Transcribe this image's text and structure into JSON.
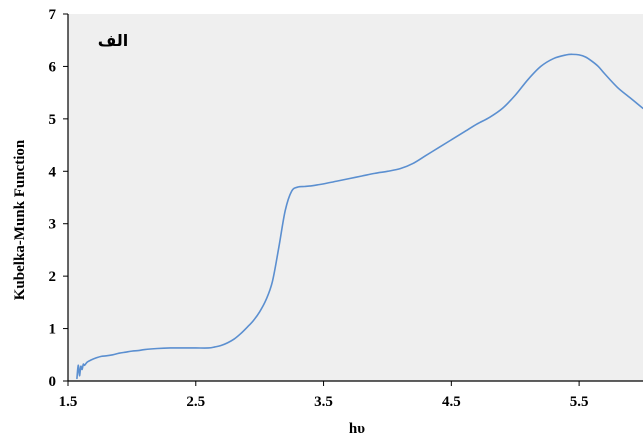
{
  "chart_data": {
    "type": "line",
    "panel_label": "الف",
    "xlabel": "hυ",
    "ylabel": "Kubelka-Munk Function",
    "xlim": [
      1.5,
      6.0
    ],
    "ylim": [
      0,
      7
    ],
    "xticks": [
      1.5,
      2.5,
      3.5,
      4.5,
      5.5
    ],
    "xtick_labels": [
      "1.5",
      "2.5",
      "3.5",
      "4.5",
      "5.5"
    ],
    "yticks": [
      0,
      1,
      2,
      3,
      4,
      5,
      6,
      7
    ],
    "ytick_labels": [
      "0",
      "1",
      "2",
      "3",
      "4",
      "5",
      "6",
      "7"
    ],
    "grid": false,
    "legend": "none",
    "colors": {
      "line": "#5b8fd0",
      "plot_background": "#efefef",
      "axis": "#000000"
    },
    "series": [
      {
        "x": [
          1.57,
          1.58,
          1.59,
          1.6,
          1.61,
          1.62,
          1.63,
          1.65,
          1.68,
          1.72,
          1.76,
          1.8,
          1.85,
          1.9,
          1.95,
          2.0,
          2.05,
          2.1,
          2.2,
          2.3,
          2.4,
          2.5,
          2.6,
          2.65,
          2.7,
          2.75,
          2.8,
          2.85,
          2.9,
          2.95,
          3.0,
          3.05,
          3.1,
          3.15,
          3.2,
          3.25,
          3.3,
          3.35,
          3.4,
          3.45,
          3.5,
          3.6,
          3.7,
          3.8,
          3.9,
          4.0,
          4.1,
          4.2,
          4.3,
          4.4,
          4.5,
          4.6,
          4.7,
          4.8,
          4.9,
          5.0,
          5.1,
          5.2,
          5.3,
          5.4,
          5.45,
          5.5,
          5.55,
          5.6,
          5.65,
          5.7,
          5.8,
          5.9,
          6.0
        ],
        "y": [
          0.05,
          0.3,
          0.1,
          0.28,
          0.22,
          0.32,
          0.3,
          0.36,
          0.4,
          0.44,
          0.47,
          0.48,
          0.5,
          0.53,
          0.55,
          0.57,
          0.58,
          0.6,
          0.62,
          0.63,
          0.63,
          0.63,
          0.63,
          0.65,
          0.68,
          0.73,
          0.8,
          0.9,
          1.02,
          1.15,
          1.32,
          1.55,
          1.9,
          2.55,
          3.25,
          3.62,
          3.7,
          3.71,
          3.72,
          3.74,
          3.76,
          3.81,
          3.86,
          3.91,
          3.96,
          4.0,
          4.05,
          4.15,
          4.3,
          4.45,
          4.6,
          4.75,
          4.9,
          5.03,
          5.2,
          5.45,
          5.75,
          6.0,
          6.15,
          6.22,
          6.23,
          6.22,
          6.18,
          6.1,
          6.0,
          5.86,
          5.6,
          5.4,
          5.2
        ]
      }
    ]
  }
}
